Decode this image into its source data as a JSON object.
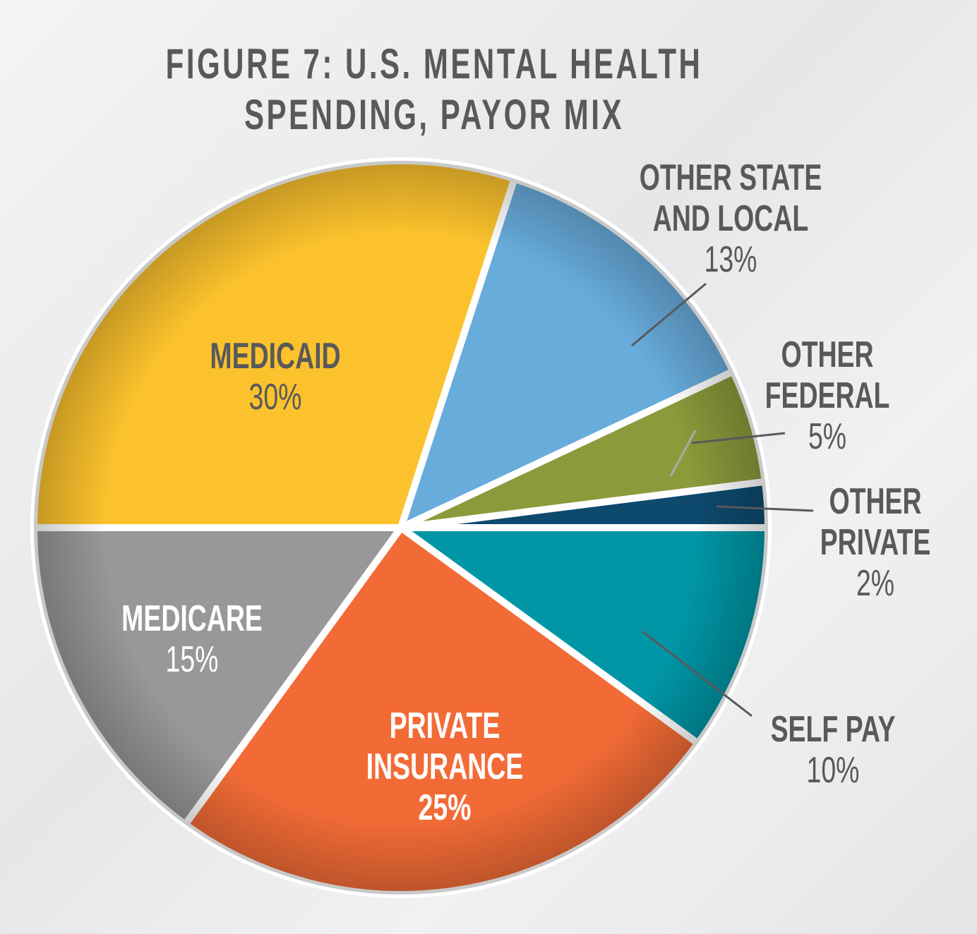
{
  "chart_data": {
    "type": "pie",
    "title": "FIGURE 7: U.S. MENTAL HEALTH SPENDING, PAYOR MIX",
    "categories": [
      "MEDICAID",
      "OTHER STATE AND LOCAL",
      "OTHER FEDERAL",
      "OTHER PRIVATE",
      "SELF PAY",
      "PRIVATE INSURANCE",
      "MEDICARE"
    ],
    "values": [
      30,
      13,
      5,
      2,
      10,
      25,
      15
    ],
    "value_labels": [
      "30%",
      "13%",
      "5%",
      "2%",
      "10%",
      "25%",
      "15%"
    ],
    "colors": [
      "#fcc22d",
      "#68acdc",
      "#8c9a3b",
      "#0d4a6e",
      "#0096a6",
      "#f26b36",
      "#98989a"
    ]
  }
}
